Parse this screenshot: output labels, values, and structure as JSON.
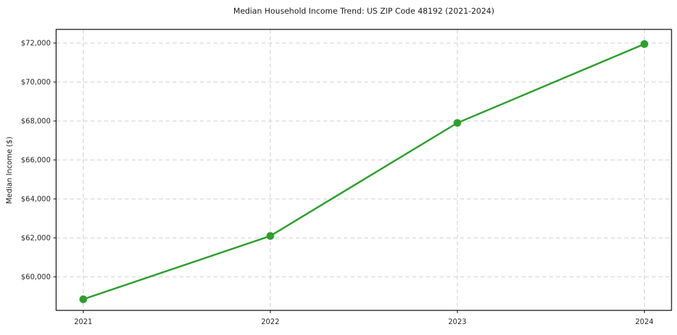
{
  "chart_data": {
    "type": "line",
    "title": "Median Household Income Trend: US ZIP Code 48192 (2021-2024)",
    "xlabel": "",
    "ylabel": "Median Income ($)",
    "x": [
      2021,
      2022,
      2023,
      2024
    ],
    "series": [
      {
        "name": "Median Household Income",
        "values": [
          58850,
          62100,
          67900,
          71950
        ]
      }
    ],
    "x_tick_labels": [
      "2021",
      "2022",
      "2023",
      "2024"
    ],
    "y_ticks": [
      60000,
      62000,
      64000,
      66000,
      68000,
      70000,
      72000
    ],
    "y_tick_labels": [
      "$60,000",
      "$62,000",
      "$64,000",
      "$66,000",
      "$68,000",
      "$70,000",
      "$72,000"
    ],
    "xlim": [
      2020.855,
      2024.145
    ],
    "ylim": [
      58280,
      72700
    ],
    "grid": true,
    "legend": "none",
    "colors": {
      "line": "#2ca02c",
      "marker": "#2ca02c",
      "grid": "#cccccc",
      "spine": "#000000",
      "tick_text": "#262626",
      "background": "#ffffff"
    }
  }
}
